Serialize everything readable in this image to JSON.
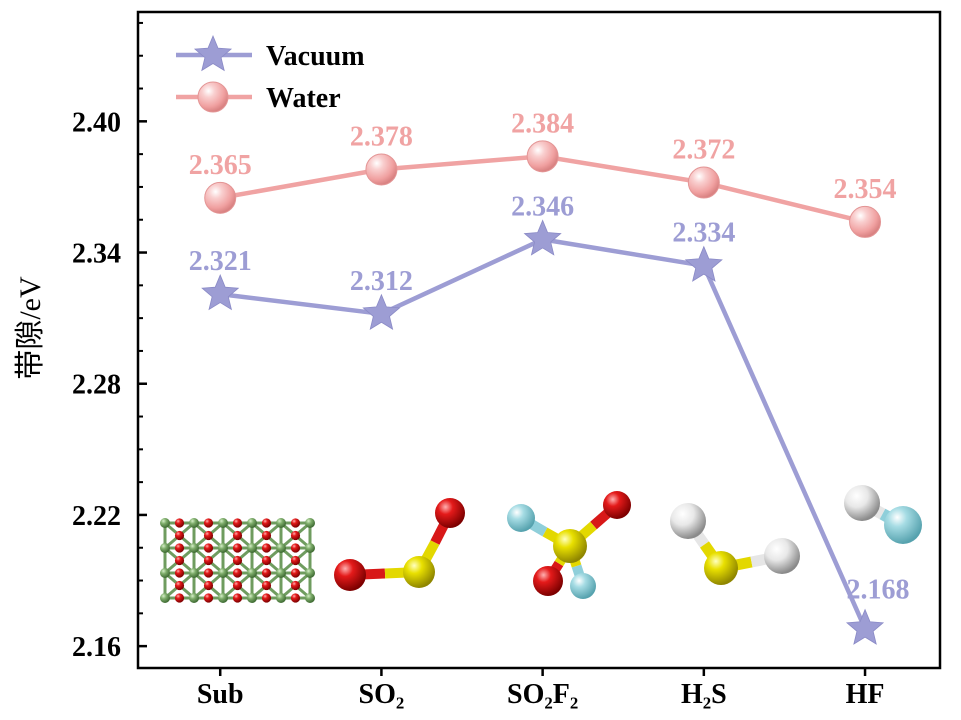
{
  "chart_data": {
    "type": "line",
    "categories": [
      "Sub",
      "SO₂",
      "SO₂F₂",
      "H₂S",
      "HF"
    ],
    "series": [
      {
        "name": "Vacuum",
        "values": [
          2.321,
          2.312,
          2.346,
          2.334,
          2.168
        ],
        "color": "#9d9dd4",
        "marker": "star"
      },
      {
        "name": "Water",
        "values": [
          2.365,
          2.378,
          2.384,
          2.372,
          2.354
        ],
        "color": "#f0a3a3",
        "marker": "sphere"
      }
    ],
    "xlabel": "",
    "ylabel": "带隙/eV",
    "yticks": [
      2.16,
      2.22,
      2.28,
      2.34,
      2.4
    ],
    "ytick_labels": [
      "2.16",
      "2.22",
      "2.28",
      "2.34",
      "2.40"
    ],
    "ylim": [
      2.15,
      2.45
    ],
    "show_data_labels": true,
    "legend": "top-left",
    "grid": false
  },
  "structure_icons": [
    "substrate-slab-icon",
    "so2-molecule-icon",
    "so2f2-molecule-icon",
    "h2s-molecule-icon",
    "hf-molecule-icon"
  ]
}
